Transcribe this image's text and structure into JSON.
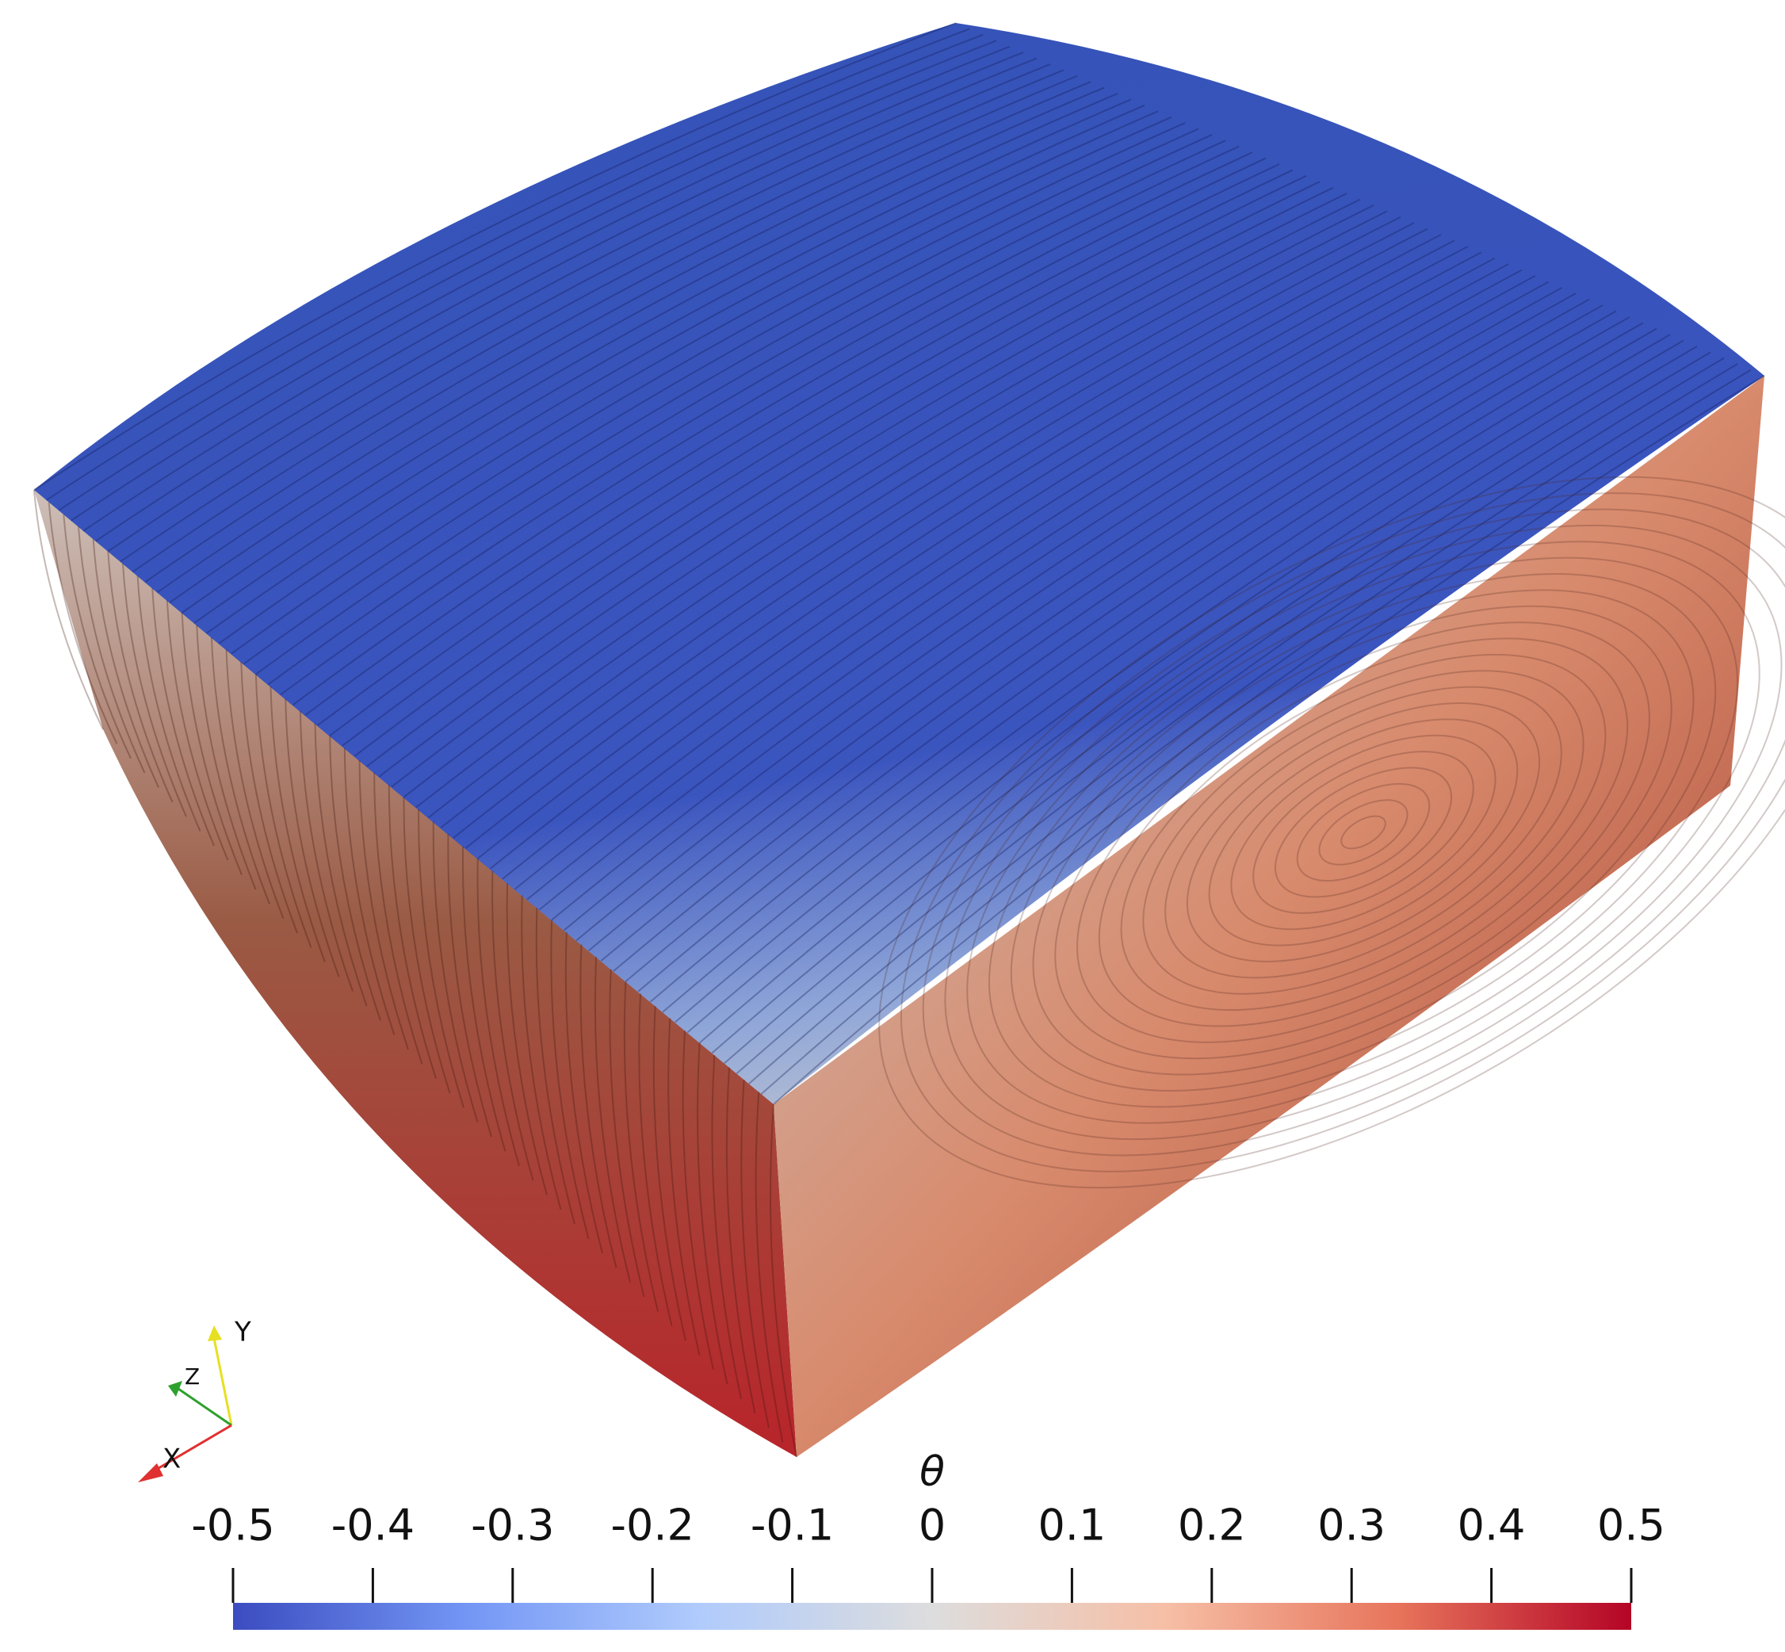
{
  "colorbar": {
    "title": "θ",
    "range": [
      -0.5,
      0.5
    ],
    "ticks": [
      -0.5,
      -0.4,
      -0.3,
      -0.2,
      -0.1,
      0,
      0.1,
      0.2,
      0.3,
      0.4,
      0.5
    ],
    "colormap": [
      "#3b4cc0",
      "#7396f5",
      "#b0cbfc",
      "#dddddd",
      "#f6bfa6",
      "#e7745b",
      "#b40426"
    ]
  },
  "axes_triad": {
    "x": "X",
    "y": "Y",
    "z": "Z"
  }
}
